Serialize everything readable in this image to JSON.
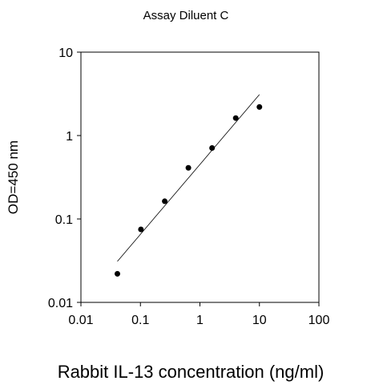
{
  "chart_data": {
    "type": "scatter",
    "title": "Assay Diluent C",
    "xlabel": "Rabbit IL-13 concentration (ng/ml)",
    "ylabel": "OD=450 nm",
    "x_scale": "log",
    "y_scale": "log",
    "xlim": [
      0.01,
      100
    ],
    "ylim": [
      0.01,
      10
    ],
    "x_ticks": [
      "0.01",
      "0.1",
      "1",
      "10",
      "100"
    ],
    "y_ticks": [
      "0.01",
      "0.1",
      "1",
      "10"
    ],
    "grid": false,
    "legend": "none",
    "series": [
      {
        "points": [
          {
            "x": 0.041,
            "y": 0.022
          },
          {
            "x": 0.102,
            "y": 0.075
          },
          {
            "x": 0.256,
            "y": 0.163
          },
          {
            "x": 0.64,
            "y": 0.41
          },
          {
            "x": 1.6,
            "y": 0.71
          },
          {
            "x": 4.0,
            "y": 1.62
          },
          {
            "x": 10.0,
            "y": 2.2
          }
        ]
      }
    ],
    "fit_line": {
      "x": [
        0.041,
        10.0
      ],
      "y": [
        0.031,
        3.1
      ]
    },
    "colors": {
      "points": "#000000",
      "fit_line": "#000000",
      "axes": "#000000"
    }
  }
}
